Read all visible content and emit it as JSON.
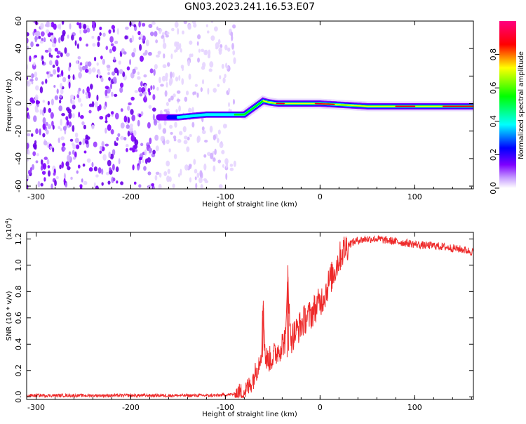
{
  "title": "GN03.2023.241.16.53.E07",
  "chart_data": [
    {
      "type": "heatmap",
      "xlabel": "Height of straight line (km)",
      "ylabel": "Frequency (Hz)",
      "xlim": [
        -310,
        162
      ],
      "ylim": [
        -62,
        60
      ],
      "x_ticks": [
        -300,
        -200,
        -100,
        0,
        100
      ],
      "y_ticks": [
        60,
        40,
        20,
        0,
        -20,
        -40,
        -60
      ],
      "colorbar": {
        "label": "Normalized spectral amplitude",
        "range": [
          0,
          1
        ],
        "ticks": [
          0,
          0.2,
          0.4,
          0.6,
          0.8
        ],
        "tick_labels": [
          "0.0",
          "0.2",
          "0.4",
          "0.6",
          "0.8"
        ],
        "colormap": [
          "#ffffff",
          "#7e00ff",
          "#0000ff",
          "#00ffff",
          "#00ff00",
          "#ffff00",
          "#ff0000",
          "#ff0080"
        ]
      },
      "signal_trace": [
        {
          "x": -150,
          "y": -10
        },
        {
          "x": -120,
          "y": -8
        },
        {
          "x": -100,
          "y": -8
        },
        {
          "x": -80,
          "y": -8
        },
        {
          "x": -70,
          "y": -3
        },
        {
          "x": -60,
          "y": 2
        },
        {
          "x": -55,
          "y": 1
        },
        {
          "x": -45,
          "y": 0
        },
        {
          "x": -20,
          "y": 0
        },
        {
          "x": 0,
          "y": 0
        },
        {
          "x": 50,
          "y": -2
        },
        {
          "x": 100,
          "y": -2
        },
        {
          "x": 160,
          "y": -2
        }
      ],
      "noise_region": {
        "x": [
          -310,
          -100
        ],
        "y": [
          -62,
          60
        ]
      }
    },
    {
      "type": "line",
      "xlabel": "Height of straight line (km)",
      "ylabel": "SNR (10 * v/v)",
      "scale_label": "(x10^4)",
      "xlim": [
        -310,
        162
      ],
      "ylim": [
        -0.02,
        1.25
      ],
      "x_ticks": [
        -300,
        -200,
        -100,
        0,
        100
      ],
      "y_ticks": [
        0.0,
        0.2,
        0.4,
        0.6,
        0.8,
        1.0,
        1.2
      ],
      "y_tick_labels": [
        "0.0",
        "0.2",
        "0.4",
        "0.6",
        "0.8",
        "1.0",
        "1.2"
      ],
      "color": "#ee2a2a",
      "series": [
        {
          "x": [
            -310,
            -250,
            -200,
            -150,
            -110,
            -90,
            -80,
            -75,
            -70,
            -65,
            -62,
            -60,
            -58,
            -55,
            -50,
            -45,
            -40,
            -36,
            -34,
            -32,
            -30,
            -25,
            -20,
            -15,
            -10,
            -5,
            0,
            5,
            10,
            15,
            20,
            25,
            30,
            40,
            50,
            60,
            70,
            80,
            90,
            100,
            110,
            120,
            130,
            140,
            150,
            162
          ],
          "y": [
            0.01,
            0.01,
            0.01,
            0.01,
            0.01,
            0.02,
            0.04,
            0.08,
            0.15,
            0.25,
            0.35,
            0.73,
            0.3,
            0.28,
            0.3,
            0.35,
            0.4,
            0.45,
            1.0,
            0.5,
            0.45,
            0.5,
            0.55,
            0.6,
            0.62,
            0.68,
            0.72,
            0.78,
            0.88,
            0.95,
            1.05,
            1.12,
            1.16,
            1.19,
            1.2,
            1.2,
            1.19,
            1.18,
            1.17,
            1.16,
            1.15,
            1.15,
            1.14,
            1.13,
            1.12,
            1.1
          ]
        }
      ]
    }
  ]
}
